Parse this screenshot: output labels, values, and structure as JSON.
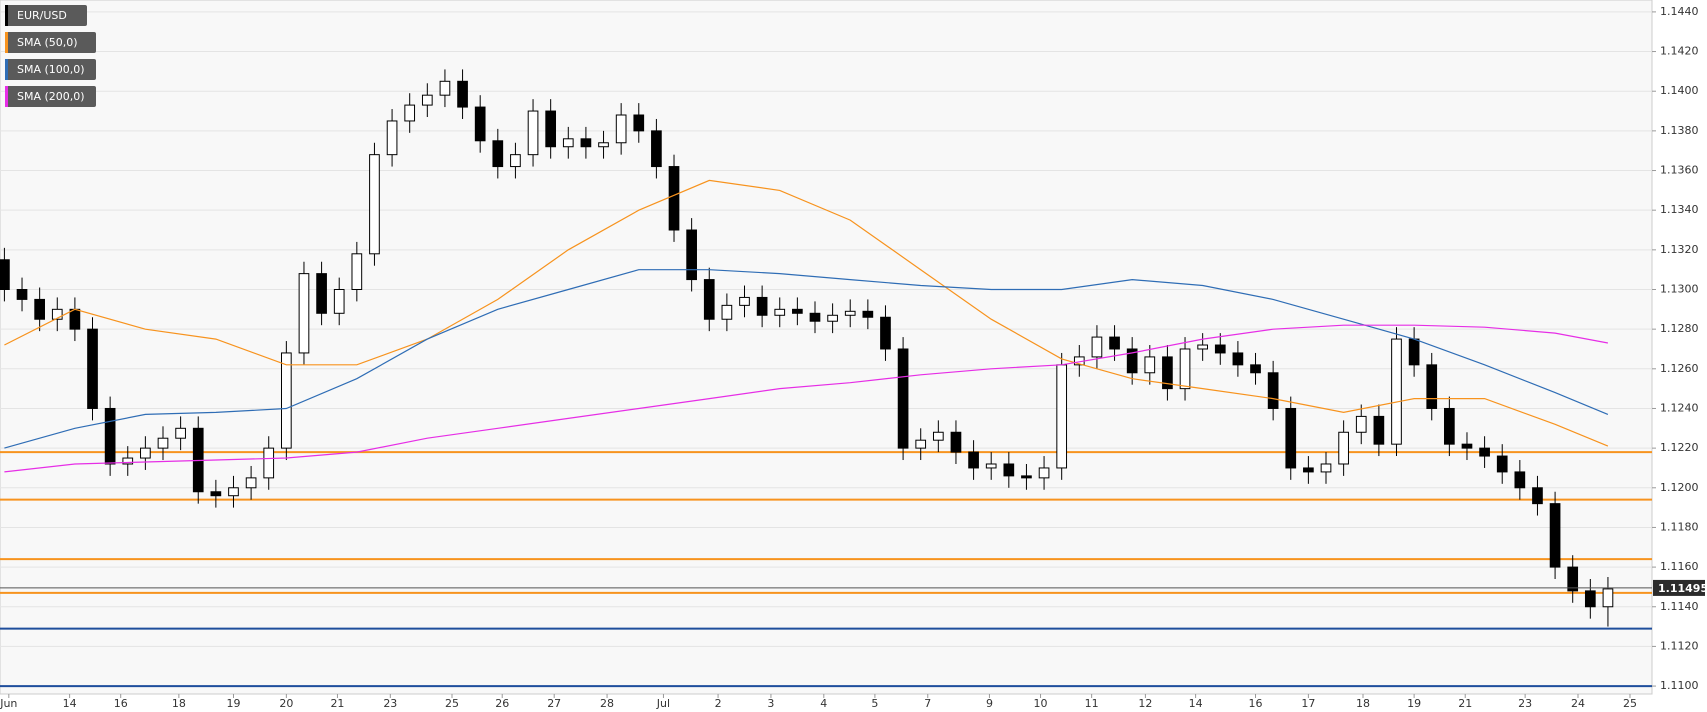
{
  "chart_data": {
    "type": "candlestick",
    "xlim": [
      -0.25,
      93.5
    ],
    "ylim": [
      1.1096,
      1.1446
    ],
    "yticks": [
      {
        "value": 1.11,
        "label": "1.1100"
      },
      {
        "value": 1.112,
        "label": "1.1120"
      },
      {
        "value": 1.114,
        "label": "1.1140"
      },
      {
        "value": 1.116,
        "label": "1.1160"
      },
      {
        "value": 1.118,
        "label": "1.1180"
      },
      {
        "value": 1.12,
        "label": "1.1200"
      },
      {
        "value": 1.122,
        "label": "1.1220"
      },
      {
        "value": 1.124,
        "label": "1.1240"
      },
      {
        "value": 1.126,
        "label": "1.1260"
      },
      {
        "value": 1.128,
        "label": "1.1280"
      },
      {
        "value": 1.13,
        "label": "1.1300"
      },
      {
        "value": 1.132,
        "label": "1.1320"
      },
      {
        "value": 1.134,
        "label": "1.1340"
      },
      {
        "value": 1.136,
        "label": "1.1360"
      },
      {
        "value": 1.138,
        "label": "1.1380"
      },
      {
        "value": 1.14,
        "label": "1.1400"
      },
      {
        "value": 1.142,
        "label": "1.1420"
      },
      {
        "value": 1.144,
        "label": "1.1440"
      }
    ],
    "xticks": [
      {
        "value": 0.25,
        "label": "Jun"
      },
      {
        "value": 3.7,
        "label": "14"
      },
      {
        "value": 6.6,
        "label": "16"
      },
      {
        "value": 9.9,
        "label": "18"
      },
      {
        "value": 13,
        "label": "19"
      },
      {
        "value": 16,
        "label": "20"
      },
      {
        "value": 18.9,
        "label": "21"
      },
      {
        "value": 21.9,
        "label": "23"
      },
      {
        "value": 25.4,
        "label": "25"
      },
      {
        "value": 28.25,
        "label": "26"
      },
      {
        "value": 31.2,
        "label": "27"
      },
      {
        "value": 34.2,
        "label": "28"
      },
      {
        "value": 37.4,
        "label": "Jul"
      },
      {
        "value": 40.5,
        "label": "2"
      },
      {
        "value": 43.5,
        "label": "3"
      },
      {
        "value": 46.5,
        "label": "4"
      },
      {
        "value": 49.4,
        "label": "5"
      },
      {
        "value": 52.4,
        "label": "7"
      },
      {
        "value": 55.9,
        "label": "9"
      },
      {
        "value": 58.8,
        "label": "10"
      },
      {
        "value": 61.7,
        "label": "11"
      },
      {
        "value": 64.75,
        "label": "12"
      },
      {
        "value": 67.6,
        "label": "14"
      },
      {
        "value": 71,
        "label": "16"
      },
      {
        "value": 74,
        "label": "17"
      },
      {
        "value": 77.1,
        "label": "18"
      },
      {
        "value": 80,
        "label": "19"
      },
      {
        "value": 82.9,
        "label": "21"
      },
      {
        "value": 86.3,
        "label": "23"
      },
      {
        "value": 89.3,
        "label": "24"
      },
      {
        "value": 92.25,
        "label": "25"
      }
    ],
    "grid": true,
    "ohlc": {
      "name": "EUR/USD",
      "color": "#000000",
      "up_color": "#ffffff",
      "open": [
        1.1315,
        1.13,
        1.1295,
        1.1285,
        1.129,
        1.128,
        1.124,
        1.1212,
        1.1215,
        1.122,
        1.1225,
        1.123,
        1.1198,
        1.1196,
        1.12,
        1.1205,
        1.122,
        1.1268,
        1.1308,
        1.1288,
        1.13,
        1.1318,
        1.1368,
        1.1385,
        1.1393,
        1.1398,
        1.1405,
        1.1392,
        1.1375,
        1.1362,
        1.1368,
        1.139,
        1.1372,
        1.1376,
        1.1372,
        1.1374,
        1.1388,
        1.138,
        1.1362,
        1.133,
        1.1305,
        1.1285,
        1.1292,
        1.1296,
        1.1287,
        1.129,
        1.1288,
        1.1284,
        1.1287,
        1.1289,
        1.1286,
        1.127,
        1.122,
        1.1224,
        1.1228,
        1.1218,
        1.121,
        1.1212,
        1.1206,
        1.1205,
        1.121,
        1.1262,
        1.1266,
        1.1276,
        1.127,
        1.1258,
        1.1266,
        1.125,
        1.127,
        1.1272,
        1.1268,
        1.1262,
        1.1258,
        1.124,
        1.121,
        1.1208,
        1.1212,
        1.1228,
        1.1236,
        1.1222,
        1.1275,
        1.1262,
        1.124,
        1.1222,
        1.122,
        1.1216,
        1.1208,
        1.12,
        1.1192,
        1.116,
        1.1148,
        1.114
      ],
      "high": [
        1.1321,
        1.1306,
        1.1301,
        1.1296,
        1.1296,
        1.1286,
        1.1246,
        1.1221,
        1.1226,
        1.1231,
        1.1236,
        1.1236,
        1.1204,
        1.1206,
        1.1211,
        1.1226,
        1.1274,
        1.1314,
        1.1314,
        1.1306,
        1.1324,
        1.1374,
        1.1391,
        1.1399,
        1.1404,
        1.1411,
        1.1411,
        1.1398,
        1.1381,
        1.1374,
        1.1396,
        1.1396,
        1.1382,
        1.1382,
        1.138,
        1.1394,
        1.1394,
        1.1386,
        1.1368,
        1.1336,
        1.1311,
        1.1298,
        1.1302,
        1.1302,
        1.1296,
        1.1296,
        1.1294,
        1.1293,
        1.1295,
        1.1295,
        1.1292,
        1.1276,
        1.123,
        1.1234,
        1.1234,
        1.1224,
        1.1218,
        1.1218,
        1.1212,
        1.1216,
        1.1268,
        1.1272,
        1.1282,
        1.1282,
        1.1276,
        1.1272,
        1.1272,
        1.1276,
        1.1278,
        1.1278,
        1.1274,
        1.1268,
        1.1264,
        1.1246,
        1.1216,
        1.1218,
        1.1234,
        1.1242,
        1.1242,
        1.1281,
        1.1281,
        1.1268,
        1.1246,
        1.1228,
        1.1226,
        1.1222,
        1.1214,
        1.1206,
        1.1198,
        1.1166,
        1.1154,
        1.1155
      ],
      "low": [
        1.1294,
        1.1289,
        1.1279,
        1.1279,
        1.1274,
        1.1234,
        1.1206,
        1.1206,
        1.1209,
        1.1214,
        1.1219,
        1.1192,
        1.119,
        1.119,
        1.1194,
        1.1199,
        1.1214,
        1.1262,
        1.1282,
        1.1282,
        1.1294,
        1.1312,
        1.1362,
        1.1379,
        1.1387,
        1.1392,
        1.1386,
        1.1369,
        1.1356,
        1.1356,
        1.1362,
        1.1366,
        1.1366,
        1.1366,
        1.1366,
        1.1368,
        1.1374,
        1.1356,
        1.1324,
        1.1299,
        1.1279,
        1.1279,
        1.1286,
        1.1281,
        1.1281,
        1.1282,
        1.1278,
        1.1278,
        1.1281,
        1.128,
        1.1264,
        1.1214,
        1.1214,
        1.1218,
        1.1212,
        1.1204,
        1.1204,
        1.12,
        1.1199,
        1.1199,
        1.1204,
        1.1256,
        1.126,
        1.1264,
        1.1252,
        1.1252,
        1.1244,
        1.1244,
        1.1264,
        1.1262,
        1.1256,
        1.1252,
        1.1234,
        1.1204,
        1.1202,
        1.1202,
        1.1206,
        1.1222,
        1.1216,
        1.1216,
        1.1256,
        1.1234,
        1.1216,
        1.1214,
        1.121,
        1.1202,
        1.1194,
        1.1186,
        1.1154,
        1.1142,
        1.1134,
        1.113
      ],
      "close": [
        1.13,
        1.1295,
        1.1285,
        1.129,
        1.128,
        1.124,
        1.1212,
        1.1215,
        1.122,
        1.1225,
        1.123,
        1.1198,
        1.1196,
        1.12,
        1.1205,
        1.122,
        1.1268,
        1.1308,
        1.1288,
        1.13,
        1.1318,
        1.1368,
        1.1385,
        1.1393,
        1.1398,
        1.1405,
        1.1392,
        1.1375,
        1.1362,
        1.1368,
        1.139,
        1.1372,
        1.1376,
        1.1372,
        1.1374,
        1.1388,
        1.138,
        1.1362,
        1.133,
        1.1305,
        1.1285,
        1.1292,
        1.1296,
        1.1287,
        1.129,
        1.1288,
        1.1284,
        1.1287,
        1.1289,
        1.1286,
        1.127,
        1.122,
        1.1224,
        1.1228,
        1.1218,
        1.121,
        1.1212,
        1.1206,
        1.1205,
        1.121,
        1.1262,
        1.1266,
        1.1276,
        1.127,
        1.1258,
        1.1266,
        1.125,
        1.127,
        1.1272,
        1.1268,
        1.1262,
        1.1258,
        1.124,
        1.121,
        1.1208,
        1.1212,
        1.1228,
        1.1236,
        1.1222,
        1.1275,
        1.1262,
        1.124,
        1.1222,
        1.122,
        1.1216,
        1.1208,
        1.12,
        1.1192,
        1.116,
        1.1148,
        1.114,
        1.1149
      ]
    },
    "series": [
      {
        "name": "SMA (50,0)",
        "color": "#f7931e",
        "x": [
          0,
          4,
          8,
          12,
          16,
          20,
          24,
          28,
          32,
          36,
          40,
          44,
          48,
          52,
          56,
          60,
          64,
          68,
          72,
          76,
          80,
          84,
          88,
          91
        ],
        "values": [
          1.1272,
          1.129,
          1.128,
          1.1275,
          1.1262,
          1.1262,
          1.1275,
          1.1295,
          1.132,
          1.134,
          1.1355,
          1.135,
          1.1335,
          1.131,
          1.1285,
          1.1265,
          1.1255,
          1.125,
          1.1245,
          1.1238,
          1.1245,
          1.1245,
          1.1232,
          1.1221
        ]
      },
      {
        "name": "SMA (100,0)",
        "color": "#2f6db5",
        "x": [
          0,
          4,
          8,
          12,
          16,
          20,
          24,
          28,
          32,
          36,
          40,
          44,
          48,
          52,
          56,
          60,
          64,
          68,
          72,
          76,
          80,
          84,
          88,
          91
        ],
        "values": [
          1.122,
          1.123,
          1.1237,
          1.1238,
          1.124,
          1.1255,
          1.1275,
          1.129,
          1.13,
          1.131,
          1.131,
          1.1308,
          1.1305,
          1.1302,
          1.13,
          1.13,
          1.1305,
          1.1302,
          1.1295,
          1.1285,
          1.1275,
          1.1262,
          1.1248,
          1.1237
        ]
      },
      {
        "name": "SMA (200,0)",
        "color": "#e62ee6",
        "x": [
          0,
          4,
          8,
          12,
          16,
          20,
          24,
          28,
          32,
          36,
          40,
          44,
          48,
          52,
          56,
          60,
          64,
          68,
          72,
          76,
          80,
          84,
          88,
          91
        ],
        "values": [
          1.1208,
          1.1212,
          1.1213,
          1.1214,
          1.1215,
          1.1218,
          1.1225,
          1.123,
          1.1235,
          1.124,
          1.1245,
          1.125,
          1.1253,
          1.1257,
          1.126,
          1.1262,
          1.1268,
          1.1275,
          1.128,
          1.1282,
          1.1282,
          1.1281,
          1.1278,
          1.1273
        ]
      }
    ],
    "levels": [
      {
        "value": 1.1218,
        "color": "#f7931e"
      },
      {
        "value": 1.1194,
        "color": "#f7931e"
      },
      {
        "value": 1.1164,
        "color": "#f7931e"
      },
      {
        "value": 1.1147,
        "color": "#f7931e"
      },
      {
        "value": 1.1129,
        "color": "#1f4e9c"
      },
      {
        "value": 1.11,
        "color": "#1f4e9c"
      }
    ],
    "last_price": 1.11495
  }
}
